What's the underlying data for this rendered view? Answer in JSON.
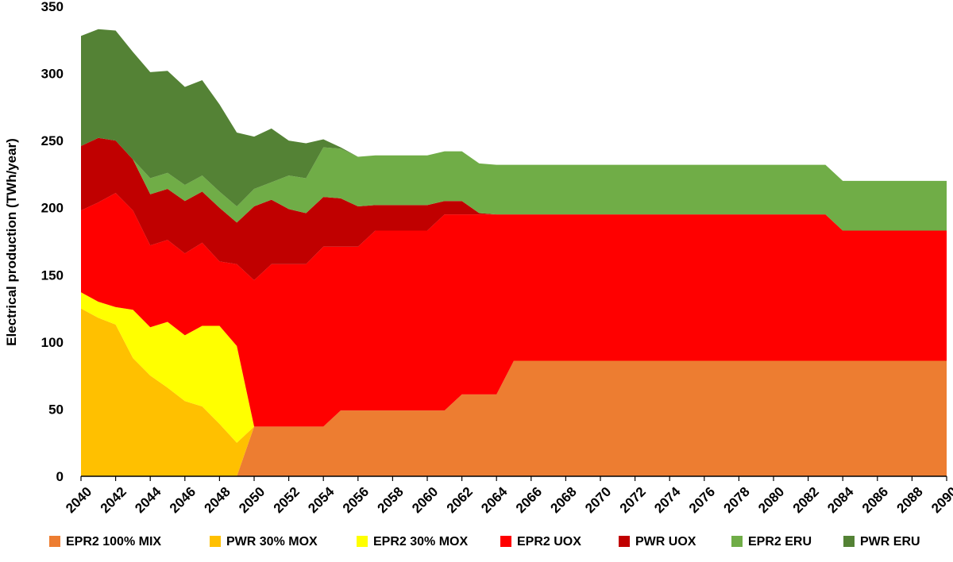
{
  "chart_data": {
    "type": "area",
    "stacked": true,
    "title": "",
    "xlabel": "",
    "ylabel": "Electrical production (TWh/year)",
    "ylim": [
      0,
      350
    ],
    "yticks": [
      0,
      50,
      100,
      150,
      200,
      250,
      300,
      350
    ],
    "xlim": [
      2040,
      2090
    ],
    "xtick_step": 2,
    "grid": false,
    "legend_position": "bottom",
    "x": [
      2040,
      2041,
      2042,
      2043,
      2044,
      2045,
      2046,
      2047,
      2048,
      2049,
      2050,
      2051,
      2052,
      2053,
      2054,
      2055,
      2056,
      2057,
      2058,
      2059,
      2060,
      2061,
      2062,
      2063,
      2064,
      2065,
      2066,
      2067,
      2068,
      2069,
      2070,
      2071,
      2072,
      2073,
      2074,
      2075,
      2076,
      2077,
      2078,
      2079,
      2080,
      2081,
      2082,
      2083,
      2084,
      2085,
      2086,
      2087,
      2088,
      2089,
      2090
    ],
    "series": [
      {
        "name": "EPR2 100% MIX",
        "color": "#ED7D31",
        "values": [
          0,
          0,
          0,
          0,
          0,
          0,
          0,
          0,
          0,
          0,
          37,
          37,
          37,
          37,
          37,
          49,
          49,
          49,
          49,
          49,
          49,
          49,
          61,
          61,
          61,
          86,
          86,
          86,
          86,
          86,
          86,
          86,
          86,
          86,
          86,
          86,
          86,
          86,
          86,
          86,
          86,
          86,
          86,
          86,
          86,
          86,
          86,
          86,
          86,
          86,
          86
        ]
      },
      {
        "name": "PWR 30% MOX",
        "color": "#FFC000",
        "values": [
          125,
          118,
          113,
          88,
          75,
          66,
          56,
          52,
          39,
          25,
          0,
          0,
          0,
          0,
          0,
          0,
          0,
          0,
          0,
          0,
          0,
          0,
          0,
          0,
          0,
          0,
          0,
          0,
          0,
          0,
          0,
          0,
          0,
          0,
          0,
          0,
          0,
          0,
          0,
          0,
          0,
          0,
          0,
          0,
          0,
          0,
          0,
          0,
          0,
          0,
          0
        ]
      },
      {
        "name": "EPR2 30% MOX",
        "color": "#FFFF00",
        "values": [
          12,
          12,
          13,
          36,
          36,
          49,
          49,
          60,
          73,
          72,
          0,
          0,
          0,
          0,
          0,
          0,
          0,
          0,
          0,
          0,
          0,
          0,
          0,
          0,
          0,
          0,
          0,
          0,
          0,
          0,
          0,
          0,
          0,
          0,
          0,
          0,
          0,
          0,
          0,
          0,
          0,
          0,
          0,
          0,
          0,
          0,
          0,
          0,
          0,
          0,
          0
        ]
      },
      {
        "name": "EPR2 UOX",
        "color": "#FF0000",
        "values": [
          61,
          74,
          85,
          74,
          61,
          61,
          61,
          62,
          48,
          61,
          109,
          121,
          121,
          121,
          134,
          122,
          122,
          134,
          134,
          134,
          134,
          146,
          134,
          134,
          134,
          109,
          109,
          109,
          109,
          109,
          109,
          109,
          109,
          109,
          109,
          109,
          109,
          109,
          109,
          109,
          109,
          109,
          109,
          109,
          97,
          97,
          97,
          97,
          97,
          97,
          97
        ]
      },
      {
        "name": "PWR UOX",
        "color": "#C00000",
        "values": [
          48,
          48,
          39,
          38,
          38,
          38,
          39,
          38,
          40,
          31,
          55,
          48,
          41,
          38,
          37,
          36,
          30,
          19,
          19,
          19,
          19,
          10,
          10,
          1,
          0,
          0,
          0,
          0,
          0,
          0,
          0,
          0,
          0,
          0,
          0,
          0,
          0,
          0,
          0,
          0,
          0,
          0,
          0,
          0,
          0,
          0,
          0,
          0,
          0,
          0,
          0
        ]
      },
      {
        "name": "EPR2 ERU",
        "color": "#70AD47",
        "values": [
          0,
          0,
          0,
          0,
          12,
          12,
          12,
          12,
          12,
          12,
          13,
          13,
          25,
          26,
          37,
          37,
          37,
          37,
          37,
          37,
          37,
          37,
          37,
          37,
          37,
          37,
          37,
          37,
          37,
          37,
          37,
          37,
          37,
          37,
          37,
          37,
          37,
          37,
          37,
          37,
          37,
          37,
          37,
          37,
          37,
          37,
          37,
          37,
          37,
          37,
          37
        ]
      },
      {
        "name": "PWR ERU",
        "color": "#548235",
        "values": [
          82,
          81,
          82,
          80,
          79,
          76,
          73,
          71,
          65,
          55,
          39,
          40,
          26,
          26,
          6,
          1,
          0,
          0,
          0,
          0,
          0,
          0,
          0,
          0,
          0,
          0,
          0,
          0,
          0,
          0,
          0,
          0,
          0,
          0,
          0,
          0,
          0,
          0,
          0,
          0,
          0,
          0,
          0,
          0,
          0,
          0,
          0,
          0,
          0,
          0,
          0
        ]
      }
    ]
  }
}
